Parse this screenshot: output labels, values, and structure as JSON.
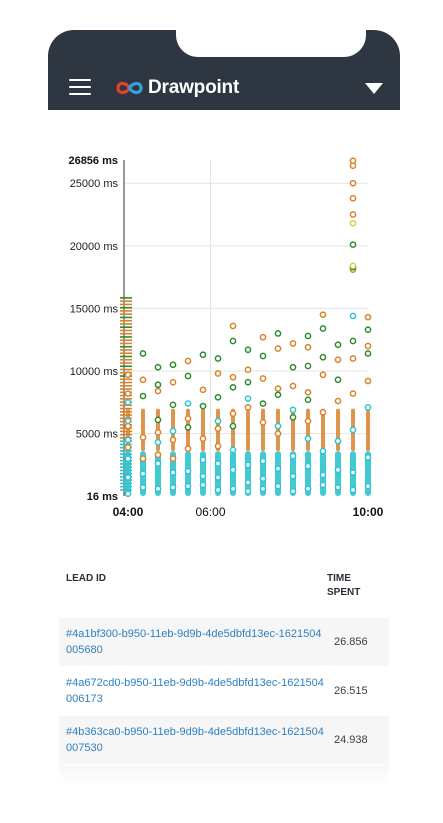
{
  "app": {
    "brand": "Drawpoint",
    "colors": {
      "header_bg": "#2e3741",
      "logo_red": "#e0442f",
      "logo_blue": "#3aa0db",
      "link": "#2e80c1"
    },
    "icons": {
      "menu": "hamburger-icon",
      "dropdown": "caret-down-icon"
    }
  },
  "chart_data": {
    "type": "scatter",
    "title": "",
    "y_axis": {
      "min_label": "16 ms",
      "max_label": "26856 ms",
      "ticks": [
        "25000 ms",
        "20000 ms",
        "15000 ms",
        "10000 ms",
        "5000 ms"
      ],
      "min": 16,
      "max": 26856
    },
    "x_axis": {
      "ticks": [
        "04:00",
        "06:00",
        "10:00"
      ],
      "bold_ticks": [
        "04:00",
        "10:00"
      ]
    },
    "grid": true,
    "series": [
      {
        "color": "#2ec4cf",
        "points": [
          [
            0,
            200
          ],
          [
            0,
            1500
          ],
          [
            0,
            3000
          ],
          [
            0,
            4500
          ],
          [
            0,
            6000
          ],
          [
            0,
            7500
          ],
          [
            1,
            700
          ],
          [
            1,
            1800
          ],
          [
            2,
            600
          ],
          [
            2,
            2600
          ],
          [
            2,
            4300
          ],
          [
            3,
            700
          ],
          [
            3,
            1900
          ],
          [
            3,
            5200
          ],
          [
            4,
            800
          ],
          [
            4,
            2000
          ],
          [
            4,
            7400
          ],
          [
            5,
            900
          ],
          [
            5,
            1600
          ],
          [
            5,
            2900
          ],
          [
            6,
            500
          ],
          [
            6,
            1500
          ],
          [
            6,
            2600
          ],
          [
            6,
            6000
          ],
          [
            7,
            600
          ],
          [
            7,
            2100
          ],
          [
            7,
            3700
          ],
          [
            8,
            400
          ],
          [
            8,
            1100
          ],
          [
            8,
            2500
          ],
          [
            8,
            7800
          ],
          [
            9,
            600
          ],
          [
            9,
            1400
          ],
          [
            9,
            2800
          ],
          [
            10,
            800
          ],
          [
            10,
            2200
          ],
          [
            10,
            5600
          ],
          [
            11,
            400
          ],
          [
            11,
            1600
          ],
          [
            11,
            3200
          ],
          [
            11,
            6900
          ],
          [
            12,
            600
          ],
          [
            12,
            2400
          ],
          [
            12,
            4600
          ],
          [
            13,
            900
          ],
          [
            13,
            1700
          ],
          [
            13,
            3600
          ],
          [
            14,
            700
          ],
          [
            14,
            2100
          ],
          [
            14,
            4400
          ],
          [
            15,
            500
          ],
          [
            15,
            1900
          ],
          [
            15,
            5300
          ],
          [
            15,
            14400
          ],
          [
            16,
            800
          ],
          [
            16,
            3100
          ],
          [
            16,
            7100
          ]
        ]
      },
      {
        "color": "#d9822b",
        "points": [
          [
            0,
            9700
          ],
          [
            0,
            8200
          ],
          [
            0,
            5600
          ],
          [
            0,
            3900
          ],
          [
            1,
            9300
          ],
          [
            1,
            4700
          ],
          [
            1,
            3000
          ],
          [
            2,
            8400
          ],
          [
            2,
            5100
          ],
          [
            2,
            3300
          ],
          [
            3,
            9100
          ],
          [
            3,
            4500
          ],
          [
            3,
            3000
          ],
          [
            4,
            10800
          ],
          [
            4,
            6200
          ],
          [
            4,
            3800
          ],
          [
            5,
            8500
          ],
          [
            5,
            4600
          ],
          [
            6,
            9800
          ],
          [
            6,
            5400
          ],
          [
            6,
            4000
          ],
          [
            7,
            13600
          ],
          [
            7,
            9500
          ],
          [
            7,
            6600
          ],
          [
            8,
            10100
          ],
          [
            8,
            7100
          ],
          [
            9,
            12700
          ],
          [
            9,
            9400
          ],
          [
            9,
            5900
          ],
          [
            10,
            11800
          ],
          [
            10,
            8600
          ],
          [
            10,
            5000
          ],
          [
            11,
            12200
          ],
          [
            11,
            8800
          ],
          [
            12,
            11900
          ],
          [
            12,
            8300
          ],
          [
            12,
            6000
          ],
          [
            13,
            14500
          ],
          [
            13,
            9700
          ],
          [
            13,
            6700
          ],
          [
            14,
            10900
          ],
          [
            14,
            7600
          ],
          [
            15,
            26800
          ],
          [
            15,
            26400
          ],
          [
            15,
            25000
          ],
          [
            15,
            23800
          ],
          [
            15,
            22500
          ],
          [
            15,
            18100
          ],
          [
            15,
            11000
          ],
          [
            15,
            8200
          ],
          [
            16,
            14300
          ],
          [
            16,
            12000
          ],
          [
            16,
            9200
          ]
        ]
      },
      {
        "color": "#2e8b2e",
        "points": [
          [
            1,
            11400
          ],
          [
            1,
            8000
          ],
          [
            2,
            10300
          ],
          [
            2,
            8900
          ],
          [
            2,
            6100
          ],
          [
            3,
            10500
          ],
          [
            3,
            7300
          ],
          [
            4,
            9600
          ],
          [
            4,
            5500
          ],
          [
            5,
            11300
          ],
          [
            5,
            7200
          ],
          [
            6,
            11000
          ],
          [
            6,
            7900
          ],
          [
            7,
            12400
          ],
          [
            7,
            8700
          ],
          [
            7,
            5600
          ],
          [
            8,
            11700
          ],
          [
            8,
            9100
          ],
          [
            9,
            11200
          ],
          [
            9,
            7400
          ],
          [
            10,
            13000
          ],
          [
            10,
            8100
          ],
          [
            11,
            10300
          ],
          [
            11,
            6300
          ],
          [
            12,
            12800
          ],
          [
            12,
            10400
          ],
          [
            12,
            7700
          ],
          [
            13,
            13400
          ],
          [
            13,
            11100
          ],
          [
            14,
            12100
          ],
          [
            14,
            9300
          ],
          [
            15,
            20100
          ],
          [
            15,
            18300
          ],
          [
            15,
            12400
          ],
          [
            16,
            13300
          ],
          [
            16,
            11400
          ]
        ]
      },
      {
        "color": "#c8d34a",
        "points": [
          [
            15,
            21800
          ],
          [
            15,
            18400
          ]
        ]
      }
    ]
  },
  "table": {
    "headers": {
      "lead_id": "LEAD ID",
      "time_spent_line1": "TIME",
      "time_spent_line2": "SPENT"
    },
    "rows": [
      {
        "id": "#4a1bf300-b950-11eb-9d9b-4de5dbfd13ec-1621504005680",
        "time": "26.856"
      },
      {
        "id": "#4a672cd0-b950-11eb-9d9b-4de5dbfd13ec-1621504006173",
        "time": "26.515"
      },
      {
        "id": "#4b363ca0-b950-11eb-9d9b-4de5dbfd13ec-1621504007530",
        "time": "24.938"
      }
    ]
  }
}
